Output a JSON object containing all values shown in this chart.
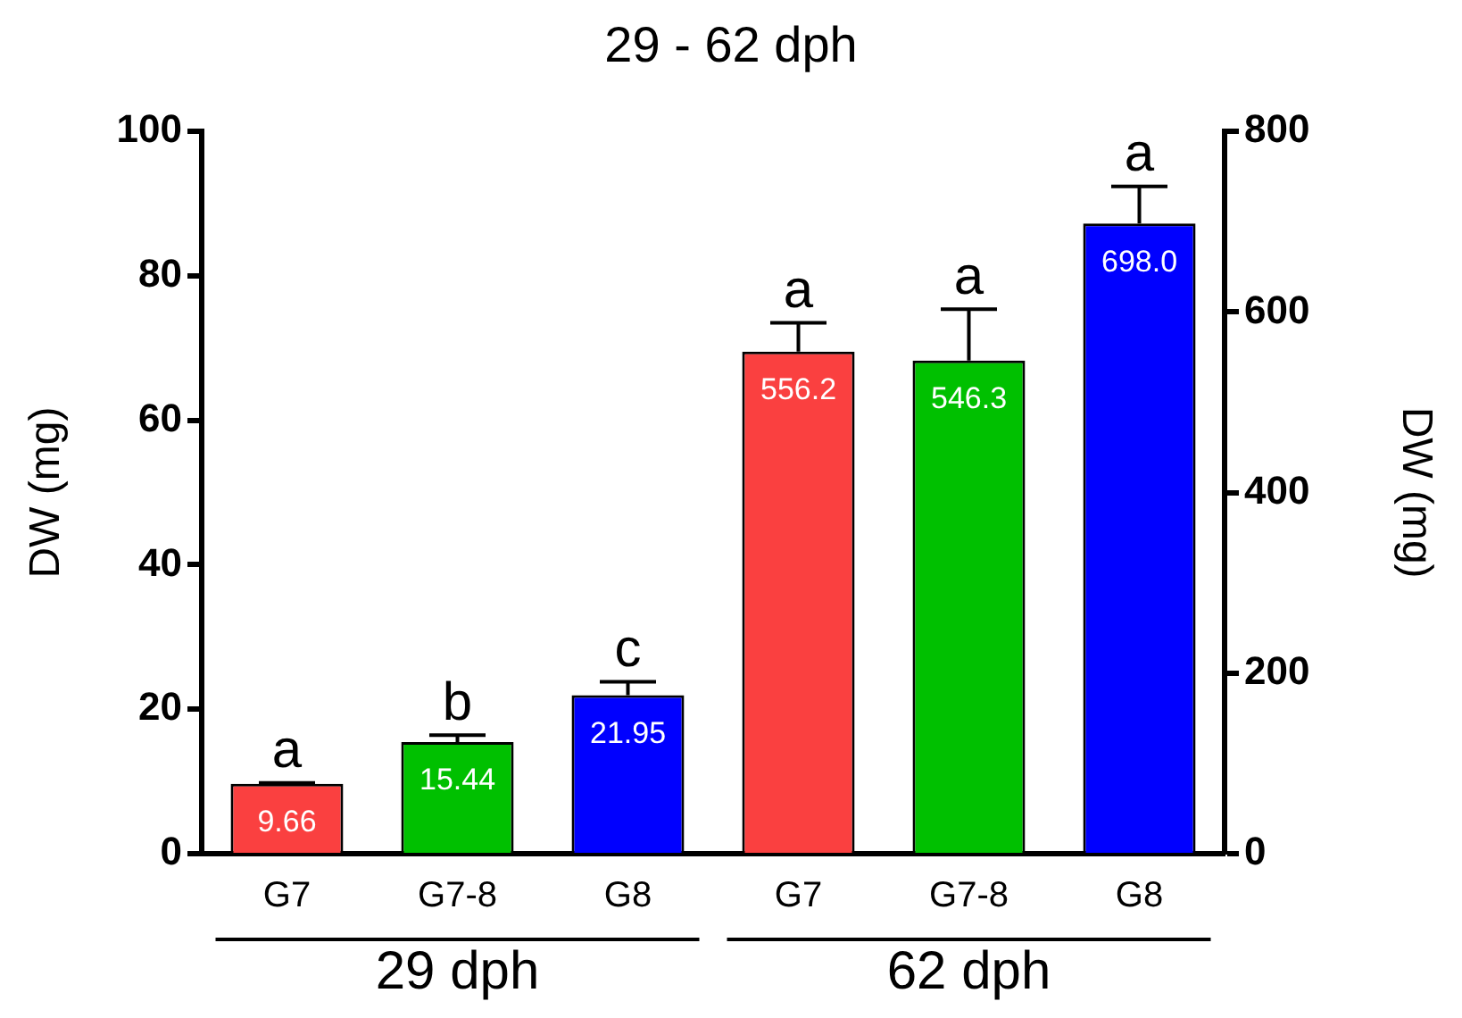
{
  "chart_data": {
    "type": "bar",
    "title": "29 - 62 dph",
    "ylabel": "DW (mg)",
    "y2label": "DW (mg)",
    "categories": [
      "G7",
      "G7-8",
      "G8",
      "G7",
      "G7-8",
      "G8"
    ],
    "series": [
      {
        "colors": [
          "#fa4040",
          "#00c000",
          "#0000ff",
          null,
          null,
          null
        ],
        "values": [
          9.66,
          15.44,
          21.95,
          null,
          null,
          null
        ],
        "value_labels": [
          "9.66",
          "15.44",
          "21.95",
          null,
          null,
          null
        ],
        "errors": [
          [
            9.66,
            9.8
          ],
          [
            15.44,
            16.4
          ],
          [
            21.95,
            23.8
          ],
          null,
          null,
          null
        ]
      },
      {
        "axis": "y2",
        "colors": [
          null,
          null,
          null,
          "#fa4040",
          "#00c000",
          "#0000ff"
        ],
        "values": [
          null,
          null,
          null,
          556.2,
          546.3,
          698.0
        ],
        "value_labels": [
          null,
          null,
          null,
          "556.2",
          "546.3",
          "698.0"
        ],
        "errors": [
          null,
          null,
          null,
          [
            556.2,
            588
          ],
          [
            546.3,
            603
          ],
          [
            698.0,
            739
          ]
        ]
      }
    ],
    "ylim": [
      0,
      100
    ],
    "yticks": [
      0,
      20,
      40,
      60,
      80,
      100
    ],
    "y2lim": [
      0,
      800
    ],
    "y2ticks": [
      0,
      200,
      400,
      600,
      800
    ],
    "grid": false,
    "legend": false,
    "annotations": [
      "a",
      "b",
      "c",
      "a",
      "a",
      "a",
      "29 dph",
      "62 dph"
    ]
  }
}
